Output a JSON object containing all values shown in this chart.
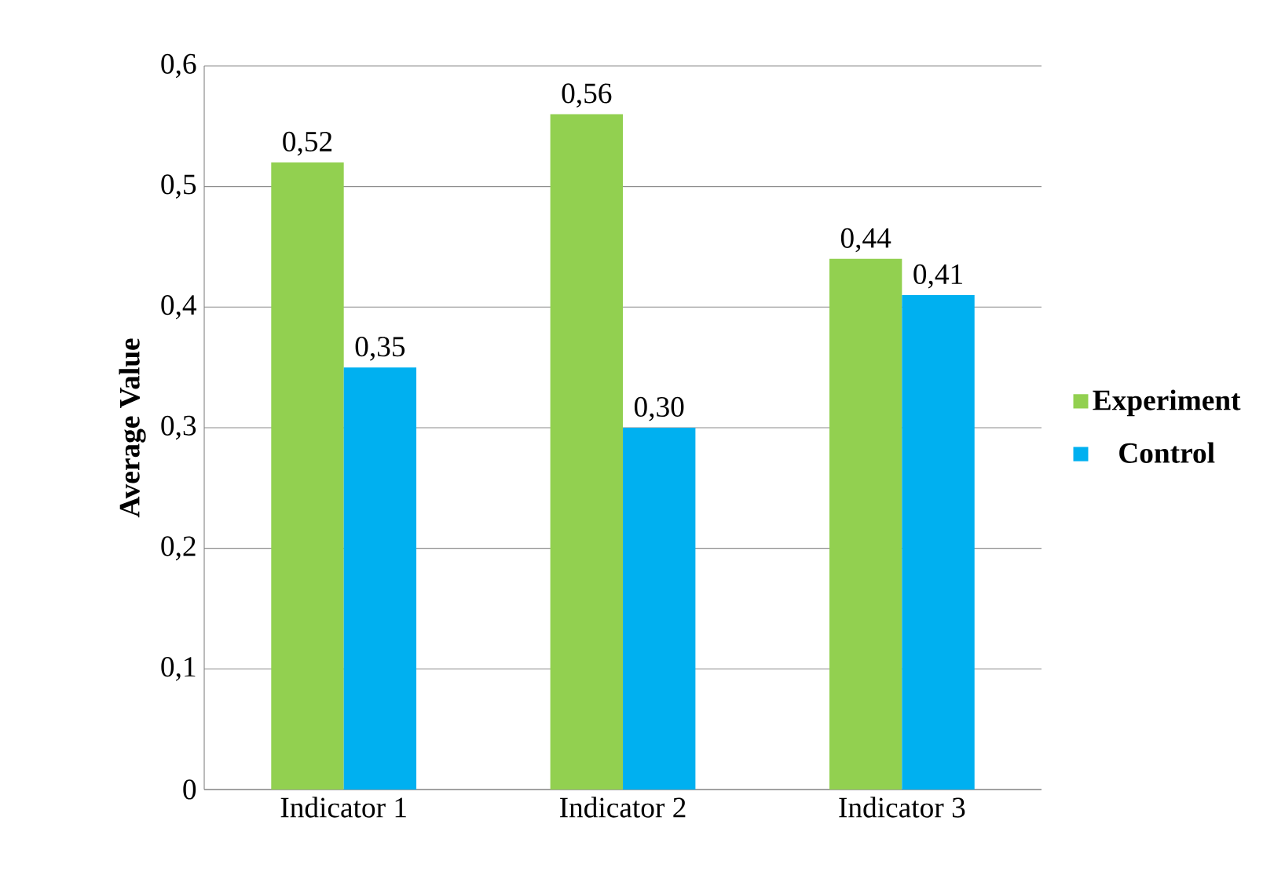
{
  "chart_data": {
    "type": "bar",
    "ylabel": "Average Value",
    "categories": [
      "Indicator 1",
      "Indicator 2",
      "Indicator 3"
    ],
    "series": [
      {
        "name": "Experiment",
        "color": "#92d050",
        "values": [
          0.52,
          0.56,
          0.44
        ],
        "value_labels": [
          "0,52",
          "0,56",
          "0,44"
        ]
      },
      {
        "name": "Control",
        "color": "#00b0f0",
        "values": [
          0.35,
          0.3,
          0.41
        ],
        "value_labels": [
          "0,35",
          "0,30",
          "0,41"
        ]
      }
    ],
    "ylim": [
      0,
      0.6
    ],
    "yticks": [
      0,
      {
        "value": 0.1,
        "label": "0,1"
      },
      {
        "value": 0.2,
        "label": "0,2"
      },
      {
        "value": 0.3,
        "label": "0,3"
      },
      {
        "value": 0.4,
        "label": "0,4"
      },
      {
        "value": 0.5,
        "label": "0,5"
      },
      {
        "value": 0.6,
        "label": "0,6"
      }
    ],
    "grid": "y",
    "legend": "right"
  }
}
